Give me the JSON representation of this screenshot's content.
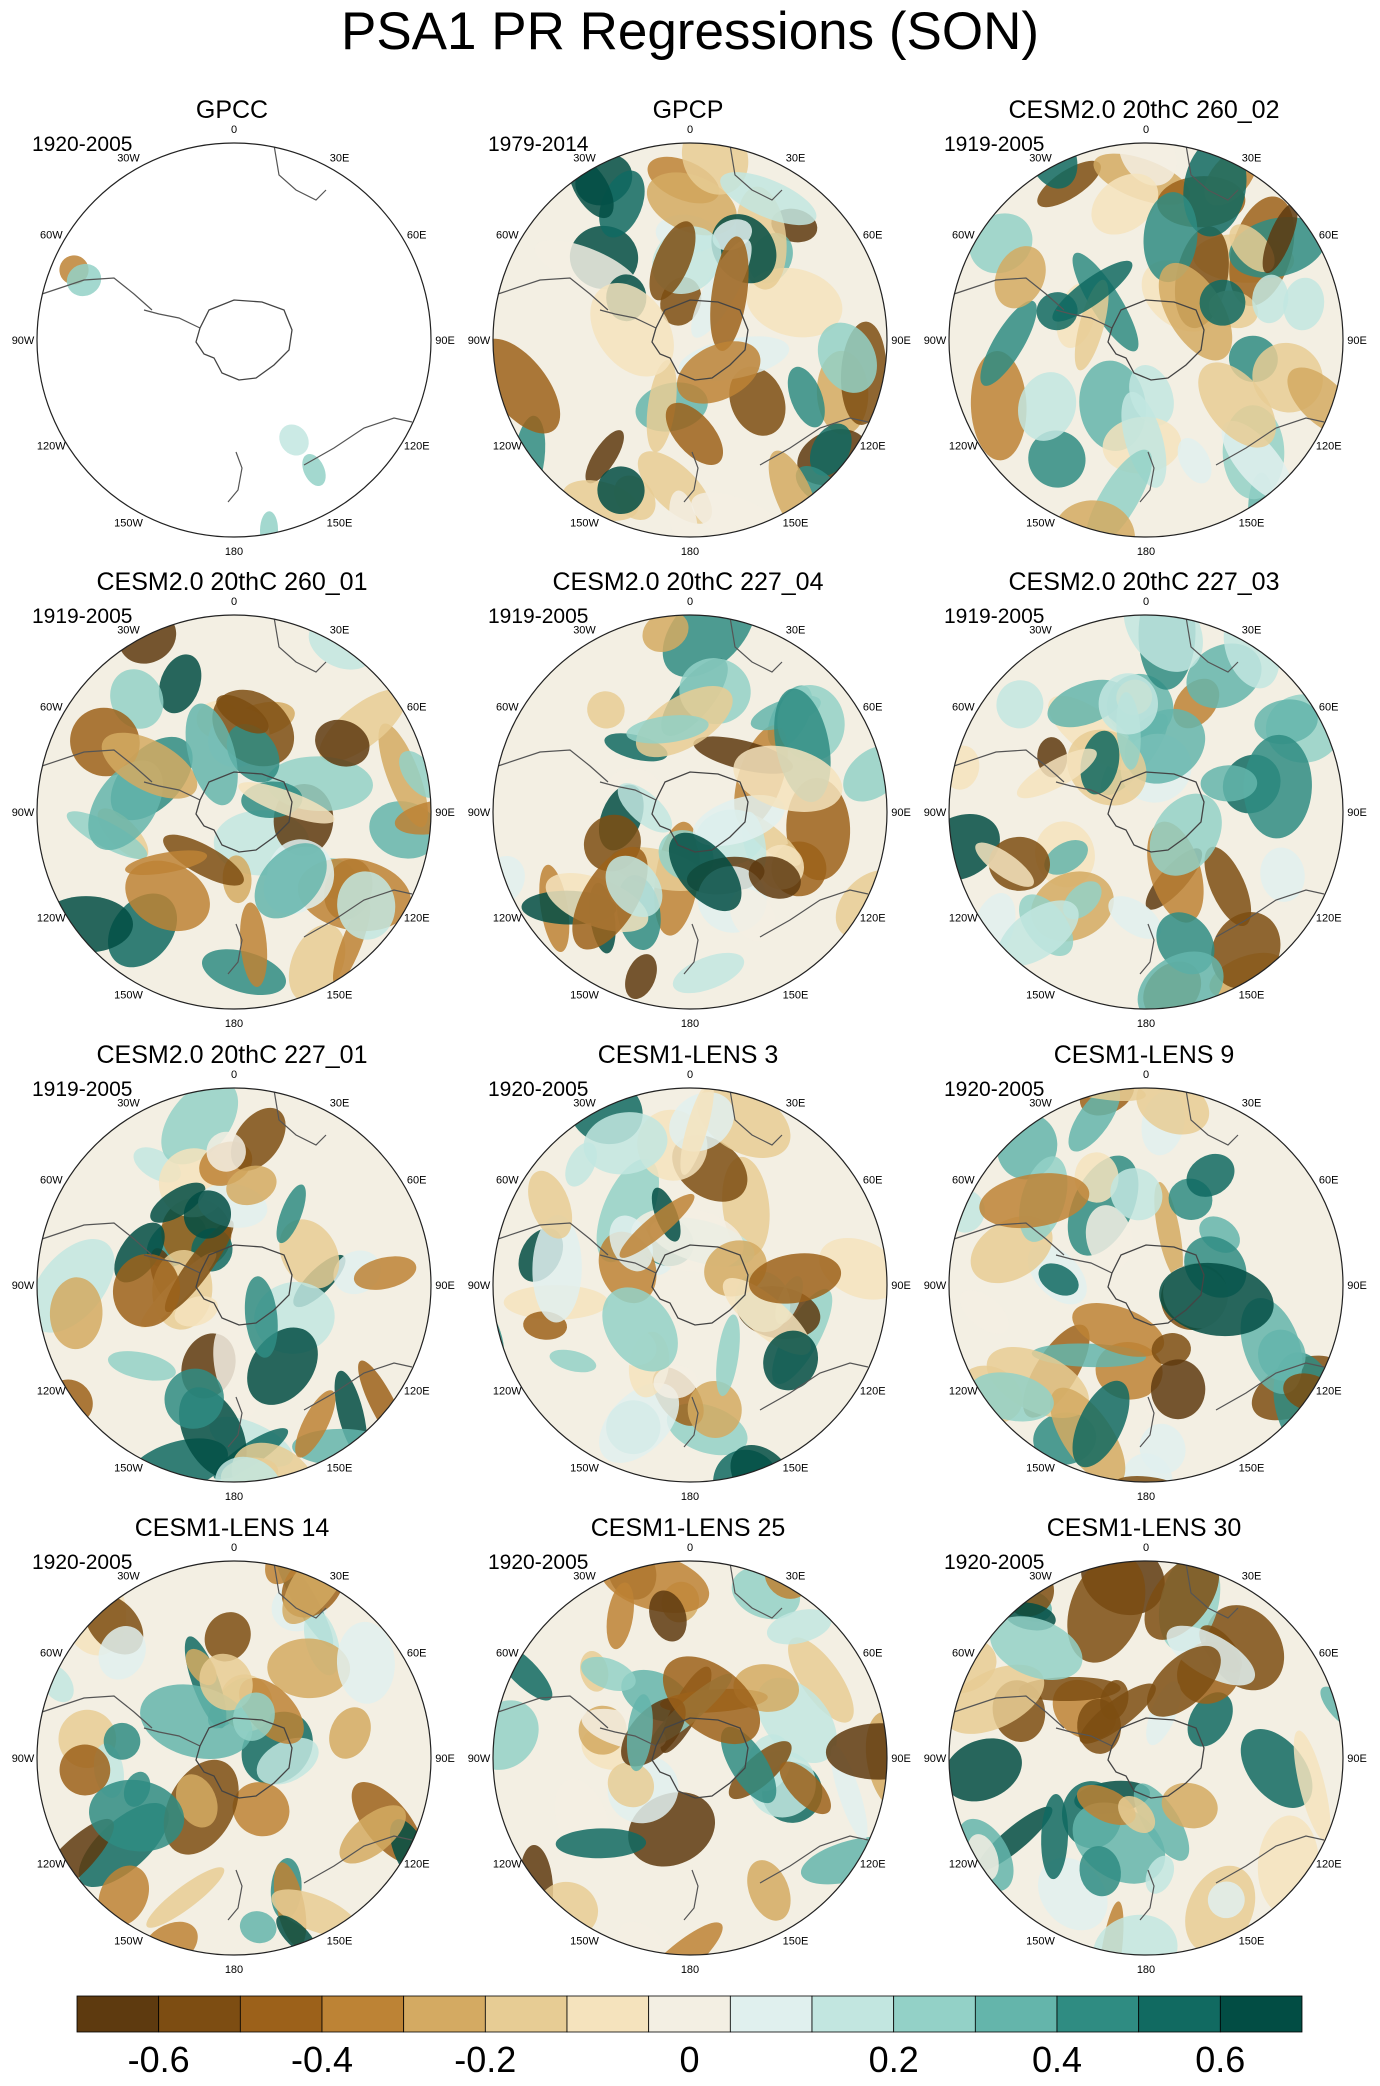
{
  "title": "PSA1 PR Regressions (SON)",
  "panels": [
    {
      "name": "GPCC",
      "period": "1920-2005",
      "coverage": "land-only"
    },
    {
      "name": "GPCP",
      "period": "1979-2014",
      "coverage": "global"
    },
    {
      "name": "CESM2.0 20thC 260_02",
      "period": "1919-2005",
      "coverage": "global"
    },
    {
      "name": "CESM2.0 20thC 260_01",
      "period": "1919-2005",
      "coverage": "global"
    },
    {
      "name": "CESM2.0 20thC 227_04",
      "period": "1919-2005",
      "coverage": "global"
    },
    {
      "name": "CESM2.0 20thC 227_03",
      "period": "1919-2005",
      "coverage": "global"
    },
    {
      "name": "CESM2.0 20thC 227_01",
      "period": "1919-2005",
      "coverage": "global"
    },
    {
      "name": "CESM1-LENS 3",
      "period": "1920-2005",
      "coverage": "global"
    },
    {
      "name": "CESM1-LENS 9",
      "period": "1920-2005",
      "coverage": "global"
    },
    {
      "name": "CESM1-LENS 14",
      "period": "1920-2005",
      "coverage": "global"
    },
    {
      "name": "CESM1-LENS 25",
      "period": "1920-2005",
      "coverage": "global"
    },
    {
      "name": "CESM1-LENS 30",
      "period": "1920-2005",
      "coverage": "global"
    }
  ],
  "map_labels": {
    "lon_0": "0",
    "lon_30e": "30E",
    "lon_60e": "60E",
    "lon_90e": "90E",
    "lon_120e": "120E",
    "lon_150e": "150E",
    "lon_180": "180",
    "lon_150w": "150W",
    "lon_120w": "120W",
    "lon_90w": "90W",
    "lon_60w": "60W",
    "lon_30w": "30W"
  },
  "colorbar": {
    "colors": [
      "#5e3a0f",
      "#7d4d12",
      "#9c611a",
      "#bd8335",
      "#d4aa62",
      "#e7cc94",
      "#f5e3bd",
      "#f3efe3",
      "#e0f0ee",
      "#c2e6e0",
      "#93d1c7",
      "#64b5ab",
      "#2f8c82",
      "#116a61",
      "#024d44"
    ],
    "tick_labels": [
      "-0.6",
      "-0.4",
      "-0.2",
      "0",
      "0.2",
      "0.4",
      "0.6"
    ],
    "tick_values": [
      -0.6,
      -0.4,
      -0.2,
      0,
      0.2,
      0.4,
      0.6
    ],
    "boundaries": [
      -0.7,
      -0.6,
      -0.5,
      -0.4,
      -0.3,
      -0.2,
      -0.1,
      -0.05,
      0.05,
      0.1,
      0.2,
      0.3,
      0.4,
      0.5,
      0.6,
      0.7
    ]
  },
  "chart_data": {
    "type": "heatmap",
    "title": "PSA1 PR Regressions (SON)",
    "projection": "south polar stereographic",
    "rows": 4,
    "cols": 3,
    "color_scale_range": [
      -0.7,
      0.7
    ]
  }
}
